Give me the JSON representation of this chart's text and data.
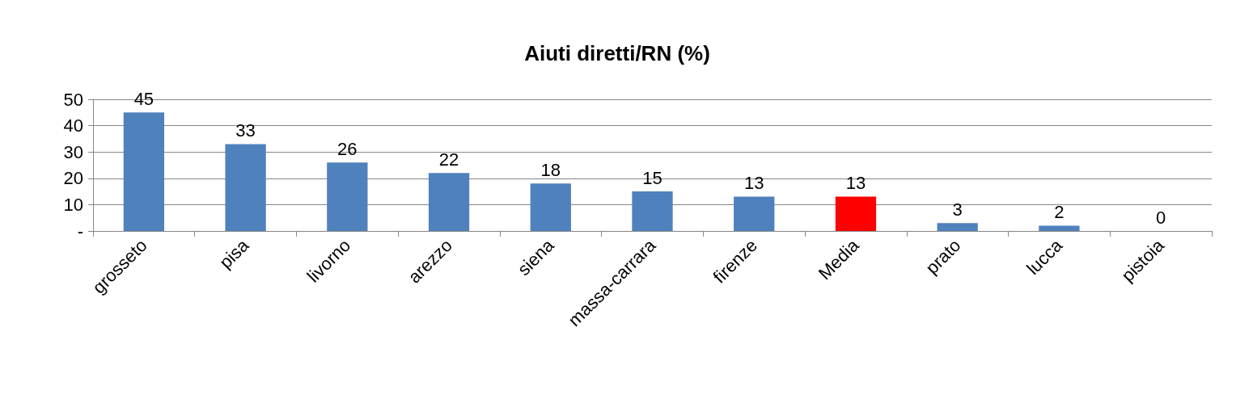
{
  "chart_data": {
    "type": "bar",
    "title": "Aiuti diretti/RN (%)",
    "categories": [
      "grosseto",
      "pisa",
      "livorno",
      "arezzo",
      "siena",
      "massa-carrara",
      "firenze",
      "Media",
      "prato",
      "lucca",
      "pistoia"
    ],
    "values": [
      45,
      33,
      26,
      22,
      18,
      15,
      13,
      13,
      3,
      2,
      0
    ],
    "colors": [
      "#4f81bd",
      "#4f81bd",
      "#4f81bd",
      "#4f81bd",
      "#4f81bd",
      "#4f81bd",
      "#4f81bd",
      "#ff0000",
      "#4f81bd",
      "#4f81bd",
      "#4f81bd"
    ],
    "ylim": [
      0,
      50
    ],
    "yticks": [
      {
        "value": 0,
        "label": "-"
      },
      10,
      20,
      30,
      40,
      50
    ],
    "grid": "y",
    "data_labels": true
  }
}
